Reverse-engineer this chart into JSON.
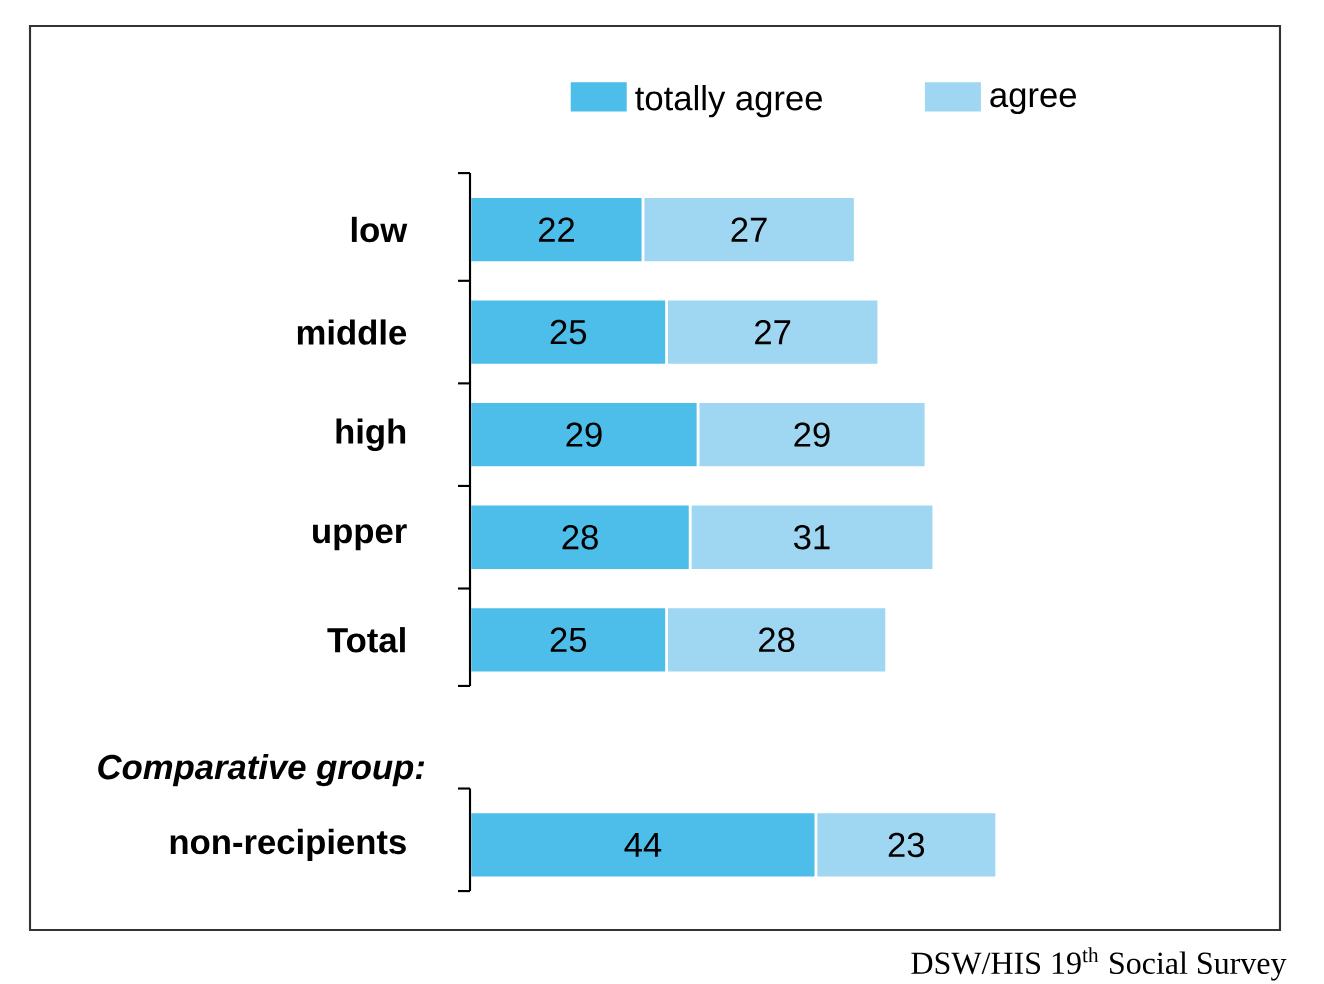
{
  "chart_data": {
    "type": "bar",
    "orientation": "horizontal",
    "stacked": true,
    "data_labels": true,
    "legend": "top",
    "categories": [
      "low",
      "middle",
      "high",
      "upper",
      "Total",
      null,
      "non-recipients"
    ],
    "series": [
      {
        "name": "totally agree",
        "color": "#4dbde9",
        "values": [
          22,
          25,
          29,
          28,
          25,
          null,
          44
        ]
      },
      {
        "name": "agree",
        "color": "#9fd6f2",
        "values": [
          27,
          27,
          29,
          31,
          28,
          null,
          23
        ]
      }
    ],
    "annotations": [
      "Comparative group:",
      "DSW/HIS 19$^{th}$ Social Survey"
    ]
  }
}
